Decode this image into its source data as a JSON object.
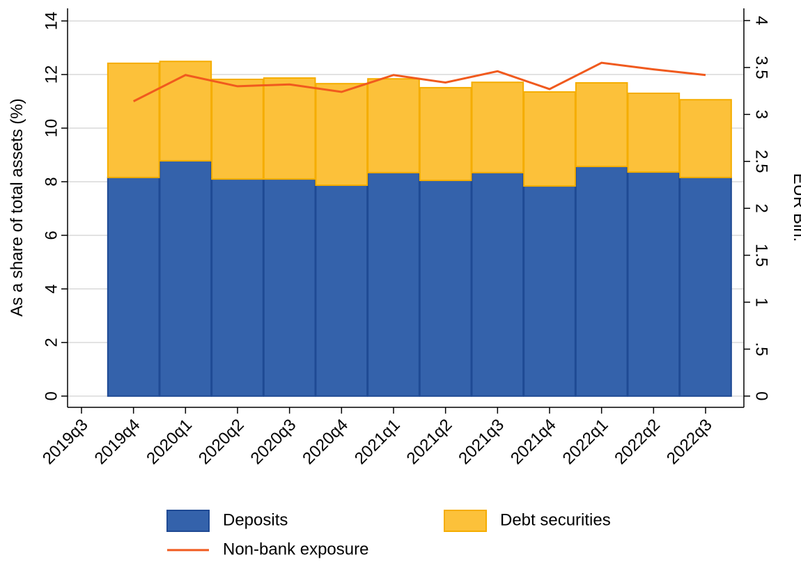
{
  "chart_data": {
    "type": "bar",
    "stacked": true,
    "y_label": "As a share of total assets (%)",
    "y2_label": "EUR Bln.",
    "categories": [
      "2019q3",
      "2019q4",
      "2020q1",
      "2020q2",
      "2020q3",
      "2020q4",
      "2021q1",
      "2021q2",
      "2021q3",
      "2021q4",
      "2022q1",
      "2022q2",
      "2022q3"
    ],
    "series": [
      {
        "name": "Deposits",
        "type": "bar",
        "color": "#3462ab",
        "edge_color": "#1f4a94",
        "values": [
          null,
          8.16,
          8.78,
          8.1,
          8.1,
          7.87,
          8.34,
          8.05,
          8.34,
          7.84,
          8.57,
          8.36,
          8.16
        ]
      },
      {
        "name": "Debt securities",
        "type": "bar",
        "color": "#fcc13a",
        "edge_color": "#f5ad00",
        "values": [
          null,
          4.26,
          3.71,
          3.72,
          3.77,
          3.79,
          3.5,
          3.46,
          3.37,
          3.51,
          3.12,
          2.94,
          2.9
        ]
      },
      {
        "name": "Non-bank exposure",
        "type": "line",
        "axis": "y2",
        "color": "#f05a1e",
        "values": [
          null,
          3.14,
          3.42,
          3.3,
          3.32,
          3.24,
          3.42,
          3.34,
          3.46,
          3.27,
          3.55,
          3.48,
          3.42
        ]
      }
    ],
    "ylim": [
      -0.42,
      14.47
    ],
    "yticks": [
      0,
      2,
      4,
      6,
      8,
      10,
      12,
      14
    ],
    "y2lim": [
      -0.12,
      4.13
    ],
    "y2ticks": [
      0,
      {
        "value": 0.5,
        "label": ".5"
      },
      1,
      1.5,
      2,
      2.5,
      3,
      3.5,
      4
    ],
    "grid": true,
    "legend": "bottom"
  }
}
